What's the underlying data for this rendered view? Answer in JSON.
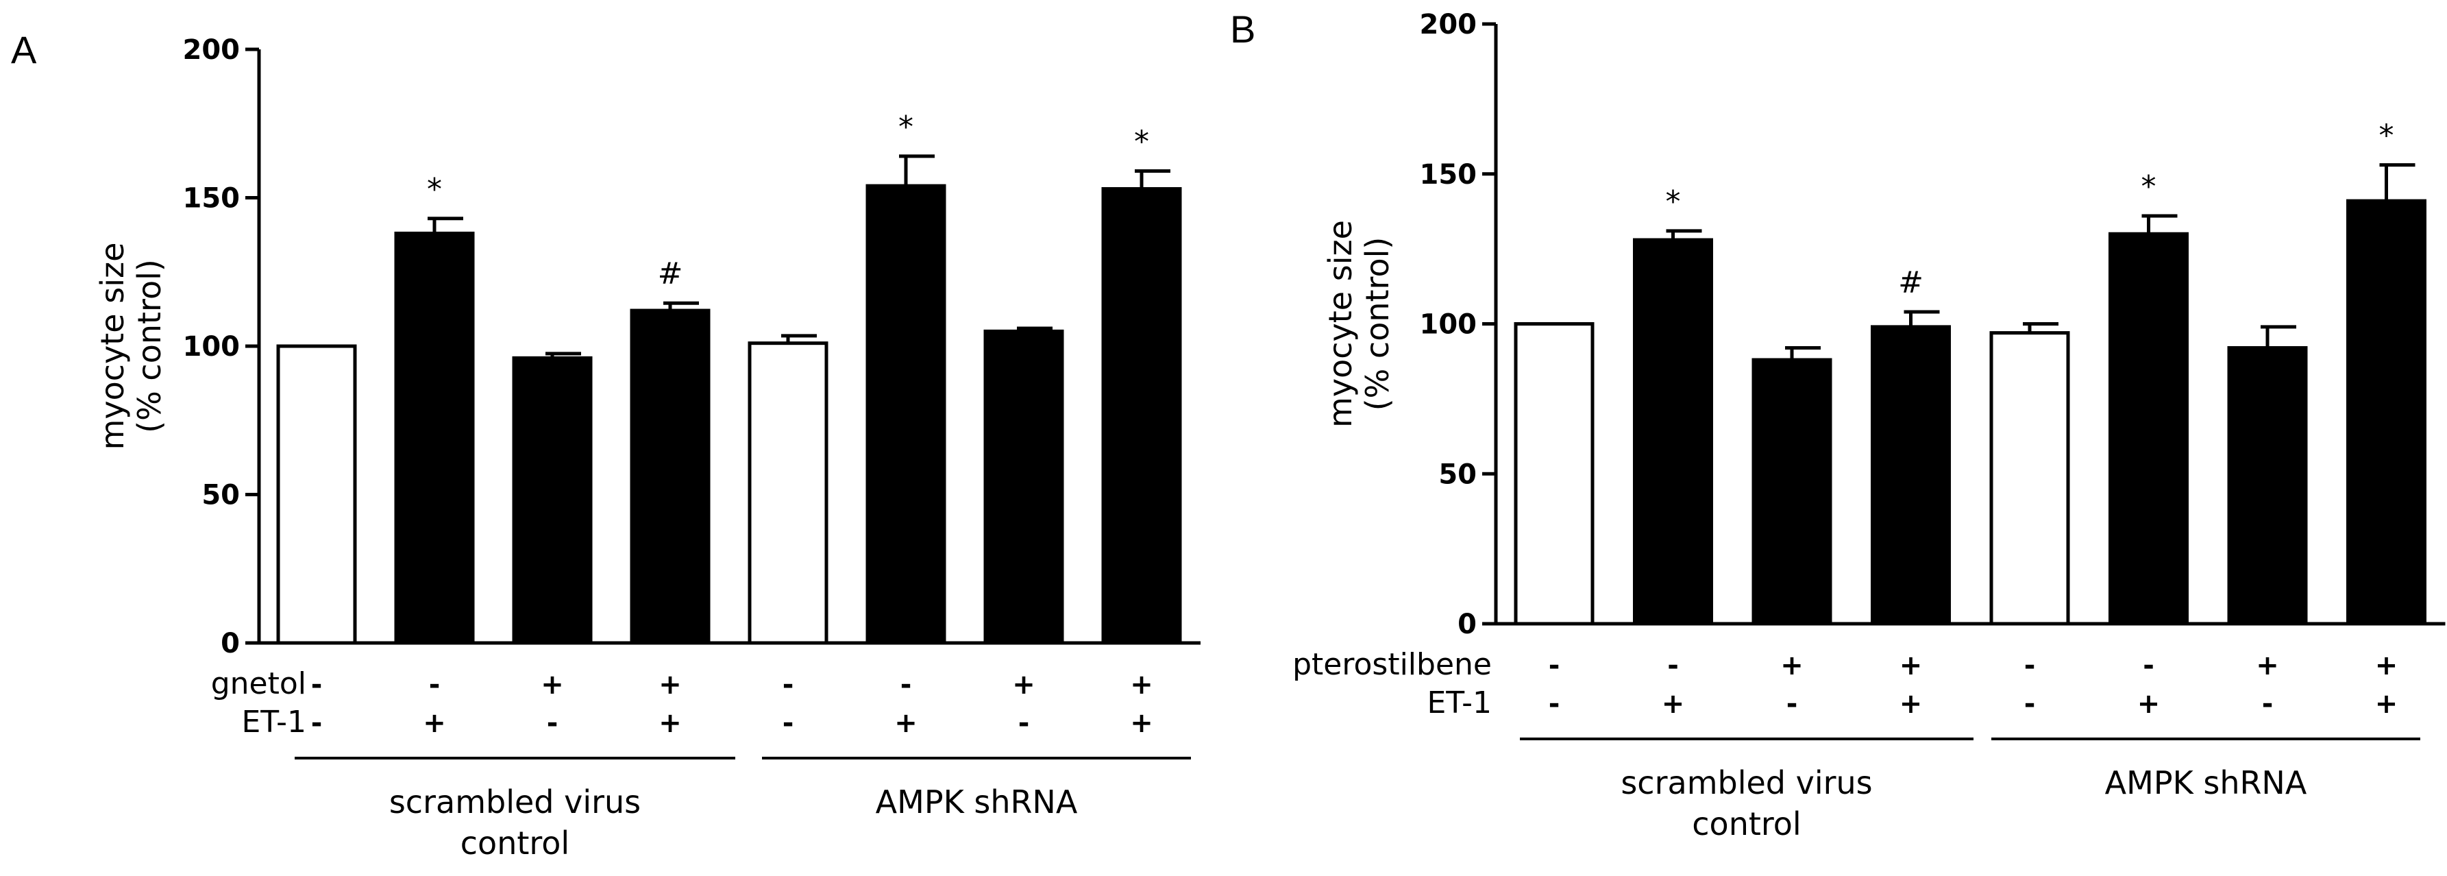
{
  "chart_data": [
    {
      "type": "bar",
      "panel_label": "A",
      "ylabel_line1": "myocyte size",
      "ylabel_line2": "(% control)",
      "ylim": [
        0,
        200
      ],
      "yticks": [
        "0",
        "50",
        "100",
        "150",
        "200"
      ],
      "treatment_row_label": "gnetol",
      "et1_row_label": "ET-1",
      "bars": [
        {
          "value": 100,
          "error": 0,
          "fill": "#ffffff",
          "treatment": "-",
          "et1": "-",
          "sig": ""
        },
        {
          "value": 138,
          "error": 5,
          "fill": "#000000",
          "treatment": "-",
          "et1": "+",
          "sig": "*"
        },
        {
          "value": 96,
          "error": 1.5,
          "fill": "#000000",
          "treatment": "+",
          "et1": "-",
          "sig": ""
        },
        {
          "value": 112,
          "error": 2.5,
          "fill": "#000000",
          "treatment": "+",
          "et1": "+",
          "sig": "#"
        },
        {
          "value": 101,
          "error": 2.5,
          "fill": "#ffffff",
          "treatment": "-",
          "et1": "-",
          "sig": ""
        },
        {
          "value": 154,
          "error": 10,
          "fill": "#000000",
          "treatment": "-",
          "et1": "+",
          "sig": "*"
        },
        {
          "value": 105,
          "error": 1,
          "fill": "#000000",
          "treatment": "+",
          "et1": "-",
          "sig": ""
        },
        {
          "value": 153,
          "error": 6,
          "fill": "#000000",
          "treatment": "+",
          "et1": "+",
          "sig": "*"
        }
      ],
      "groups": [
        {
          "line1": "scrambled virus",
          "line2": "control"
        },
        {
          "line1": "AMPK shRNA",
          "line2": ""
        }
      ]
    },
    {
      "type": "bar",
      "panel_label": "B",
      "ylabel_line1": "myocyte size",
      "ylabel_line2": "(% control)",
      "ylim": [
        0,
        200
      ],
      "yticks": [
        "0",
        "50",
        "100",
        "150",
        "200"
      ],
      "treatment_row_label": "pterostilbene",
      "et1_row_label": "ET-1",
      "bars": [
        {
          "value": 100,
          "error": 0,
          "fill": "#ffffff",
          "treatment": "-",
          "et1": "-",
          "sig": ""
        },
        {
          "value": 128,
          "error": 3,
          "fill": "#000000",
          "treatment": "-",
          "et1": "+",
          "sig": "*"
        },
        {
          "value": 88,
          "error": 4,
          "fill": "#000000",
          "treatment": "+",
          "et1": "-",
          "sig": ""
        },
        {
          "value": 99,
          "error": 5,
          "fill": "#000000",
          "treatment": "+",
          "et1": "+",
          "sig": "#"
        },
        {
          "value": 97,
          "error": 3,
          "fill": "#ffffff",
          "treatment": "-",
          "et1": "-",
          "sig": ""
        },
        {
          "value": 130,
          "error": 6,
          "fill": "#000000",
          "treatment": "-",
          "et1": "+",
          "sig": "*"
        },
        {
          "value": 92,
          "error": 7,
          "fill": "#000000",
          "treatment": "+",
          "et1": "-",
          "sig": ""
        },
        {
          "value": 141,
          "error": 12,
          "fill": "#000000",
          "treatment": "+",
          "et1": "+",
          "sig": "*"
        }
      ],
      "groups": [
        {
          "line1": "scrambled virus",
          "line2": "control"
        },
        {
          "line1": "AMPK shRNA",
          "line2": ""
        }
      ]
    }
  ]
}
